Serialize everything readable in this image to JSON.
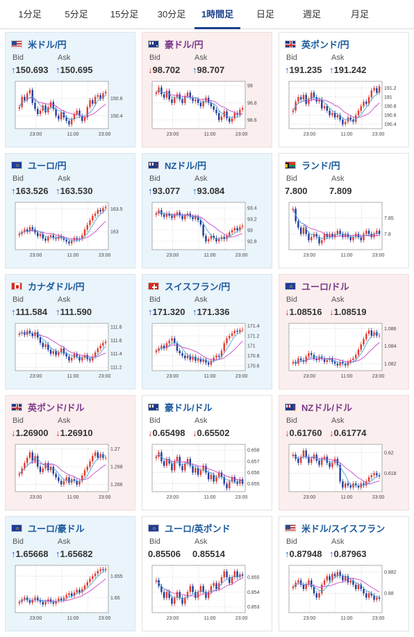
{
  "tabs": [
    {
      "label": "1分足"
    },
    {
      "label": "5分足"
    },
    {
      "label": "15分足"
    },
    {
      "label": "30分足"
    },
    {
      "label": "1時間足",
      "active": true
    },
    {
      "label": "日足"
    },
    {
      "label": "週足"
    },
    {
      "label": "月足"
    }
  ],
  "labels": {
    "bid": "Bid",
    "ask": "Ask"
  },
  "colors": {
    "up_arrow": "#1e62c8",
    "down_arrow": "#d0342a",
    "candle_up": "#e23b2e",
    "candle_down": "#1f3d9c",
    "ma_short": "#4aa3df",
    "ma_long": "#c648c6"
  },
  "pairs": [
    {
      "name": "米ドル/円",
      "flag": "us",
      "trend": "up",
      "bid_arrow": "↑",
      "ask_arrow": "↑",
      "bid": "150.693",
      "ask": "150.695",
      "chart_data": {
        "type": "candlestick",
        "x_ticks": [
          "23:00",
          "11:00",
          "23:00"
        ],
        "y_ticks": [
          "150.6",
          "150.4"
        ],
        "ylim": [
          150.25,
          150.8
        ],
        "closes": [
          150.5,
          150.62,
          150.58,
          150.66,
          150.7,
          150.55,
          150.48,
          150.42,
          150.46,
          150.52,
          150.44,
          150.5,
          150.56,
          150.48,
          150.4,
          150.36,
          150.44,
          150.38,
          150.34,
          150.3,
          150.36,
          150.42,
          150.46,
          150.4,
          150.34,
          150.38,
          150.5,
          150.58,
          150.54,
          150.62,
          150.64,
          150.6,
          150.66,
          150.68
        ]
      }
    },
    {
      "name": "豪ドル/円",
      "flag": "au",
      "trend": "down",
      "bid_arrow": "↓",
      "ask_arrow": "↑",
      "bid": "98.702",
      "ask": "98.707",
      "chart_data": {
        "type": "candlestick",
        "x_ticks": [
          "23:00",
          "11:00",
          "23:00"
        ],
        "y_ticks": [
          "99",
          "98.8",
          "98.6"
        ],
        "ylim": [
          98.5,
          99.05
        ],
        "closes": [
          98.92,
          98.98,
          98.9,
          98.86,
          98.94,
          98.84,
          98.8,
          98.86,
          98.9,
          98.84,
          98.8,
          98.88,
          98.92,
          98.86,
          98.82,
          98.84,
          98.8,
          98.76,
          98.82,
          98.86,
          98.8,
          98.76,
          98.72,
          98.68,
          98.6,
          98.64,
          98.7,
          98.62,
          98.58,
          98.62,
          98.68,
          98.66,
          98.72,
          98.74
        ]
      }
    },
    {
      "name": "英ポンド/円",
      "flag": "uk",
      "trend": "flat",
      "bid_arrow": "↑",
      "ask_arrow": "↑",
      "bid": "191.235",
      "ask": "191.242",
      "chart_data": {
        "type": "candlestick",
        "x_ticks": [
          "23:00",
          "11:00",
          "23:00"
        ],
        "y_ticks": [
          "191.2",
          "191",
          "190.8",
          "190.6",
          "190.4"
        ],
        "ylim": [
          190.3,
          191.35
        ],
        "closes": [
          190.7,
          190.9,
          191.0,
          190.95,
          191.05,
          190.85,
          190.95,
          191.1,
          191.0,
          190.9,
          190.95,
          190.75,
          190.8,
          190.7,
          190.6,
          190.65,
          190.55,
          190.6,
          190.5,
          190.4,
          190.45,
          190.55,
          190.5,
          190.45,
          190.6,
          190.7,
          190.8,
          190.9,
          190.85,
          191.0,
          191.15,
          191.2,
          191.1,
          191.24
        ]
      }
    },
    {
      "name": "ユーロ/円",
      "flag": "eu",
      "trend": "up",
      "bid_arrow": "↑",
      "ask_arrow": "↑",
      "bid": "163.526",
      "ask": "163.530",
      "chart_data": {
        "type": "candlestick",
        "x_ticks": [
          "23:00",
          "11:00",
          "23:00"
        ],
        "y_ticks": [
          "163.5",
          "163"
        ],
        "ylim": [
          162.6,
          163.65
        ],
        "closes": [
          162.95,
          163.0,
          163.05,
          163.0,
          163.1,
          163.05,
          162.98,
          162.9,
          162.95,
          162.85,
          162.8,
          162.88,
          162.92,
          162.86,
          162.84,
          162.9,
          162.86,
          162.82,
          162.78,
          162.74,
          162.8,
          162.86,
          162.82,
          162.84,
          162.92,
          163.05,
          163.15,
          163.25,
          163.35,
          163.4,
          163.48,
          163.45,
          163.52,
          163.55
        ]
      }
    },
    {
      "name": "NZドル/円",
      "flag": "nz",
      "trend": "up",
      "bid_arrow": "↑",
      "ask_arrow": "↑",
      "bid": "93.077",
      "ask": "93.084",
      "chart_data": {
        "type": "candlestick",
        "x_ticks": [
          "23:00",
          "11:00",
          "23:00"
        ],
        "y_ticks": [
          "93.4",
          "93.2",
          "93",
          "92.8"
        ],
        "ylim": [
          92.65,
          93.5
        ],
        "closes": [
          93.3,
          93.36,
          93.28,
          93.24,
          93.3,
          93.26,
          93.22,
          93.28,
          93.32,
          93.26,
          93.2,
          93.26,
          93.3,
          93.24,
          93.2,
          93.24,
          93.18,
          93.1,
          92.9,
          92.8,
          92.84,
          92.9,
          92.86,
          92.8,
          92.84,
          92.88,
          92.84,
          92.9,
          92.96,
          93.0,
          93.04,
          93.0,
          93.06,
          93.08
        ]
      }
    },
    {
      "name": "ランド/円",
      "flag": "za",
      "trend": "flat",
      "bid_arrow": "",
      "ask_arrow": "",
      "bid": "7.800",
      "ask": "7.809",
      "chart_data": {
        "type": "candlestick",
        "x_ticks": [
          "23:00",
          "11:00",
          "23:00"
        ],
        "y_ticks": [
          "7.85",
          "7.8"
        ],
        "ylim": [
          7.75,
          7.9
        ],
        "closes": [
          7.88,
          7.84,
          7.82,
          7.8,
          7.82,
          7.8,
          7.78,
          7.79,
          7.8,
          7.79,
          7.77,
          7.78,
          7.8,
          7.79,
          7.8,
          7.79,
          7.8,
          7.81,
          7.8,
          7.79,
          7.8,
          7.79,
          7.78,
          7.79,
          7.8,
          7.79,
          7.78,
          7.8,
          7.81,
          7.8,
          7.79,
          7.8,
          7.81,
          7.8
        ]
      }
    },
    {
      "name": "カナダドル/円",
      "flag": "ca",
      "trend": "up",
      "bid_arrow": "↑",
      "ask_arrow": "↑",
      "bid": "111.584",
      "ask": "111.590",
      "chart_data": {
        "type": "candlestick",
        "x_ticks": [
          "23:00",
          "11:00",
          "23:00"
        ],
        "y_ticks": [
          "111.8",
          "111.6",
          "111.4",
          "111.2"
        ],
        "ylim": [
          111.15,
          111.85
        ],
        "closes": [
          111.7,
          111.72,
          111.68,
          111.74,
          111.7,
          111.66,
          111.72,
          111.64,
          111.56,
          111.5,
          111.54,
          111.46,
          111.4,
          111.44,
          111.38,
          111.42,
          111.48,
          111.4,
          111.36,
          111.3,
          111.34,
          111.4,
          111.36,
          111.3,
          111.34,
          111.38,
          111.32,
          111.3,
          111.36,
          111.42,
          111.48,
          111.52,
          111.56,
          111.58
        ]
      }
    },
    {
      "name": "スイスフラン/円",
      "flag": "ch",
      "trend": "up",
      "bid_arrow": "↑",
      "ask_arrow": "↑",
      "bid": "171.320",
      "ask": "171.336",
      "chart_data": {
        "type": "candlestick",
        "x_ticks": [
          "23:00",
          "11:00",
          "23:00"
        ],
        "y_ticks": [
          "171.4",
          "171.2",
          "171",
          "170.8",
          "170.6"
        ],
        "ylim": [
          170.5,
          171.45
        ],
        "closes": [
          170.9,
          170.95,
          171.0,
          170.95,
          171.05,
          171.1,
          171.15,
          171.05,
          170.9,
          170.85,
          170.8,
          170.75,
          170.8,
          170.72,
          170.78,
          170.7,
          170.74,
          170.68,
          170.72,
          170.66,
          170.62,
          170.7,
          170.76,
          170.8,
          170.78,
          170.9,
          171.05,
          171.15,
          171.2,
          171.25,
          171.3,
          171.28,
          171.32,
          171.33
        ]
      }
    },
    {
      "name": "ユーロ/ドル",
      "flag": "euus",
      "trend": "down",
      "bid_arrow": "↓",
      "ask_arrow": "↓",
      "bid": "1.08516",
      "ask": "1.08519",
      "chart_data": {
        "type": "candlestick",
        "x_ticks": [
          "23:00",
          "11:00",
          "23:00"
        ],
        "y_ticks": [
          "1.086",
          "1.084",
          "1.082"
        ],
        "ylim": [
          1.0812,
          1.0866
        ],
        "closes": [
          1.0822,
          1.082,
          1.0826,
          1.0824,
          1.0822,
          1.0828,
          1.0832,
          1.083,
          1.0826,
          1.0824,
          1.0828,
          1.0826,
          1.0822,
          1.0824,
          1.0826,
          1.0822,
          1.082,
          1.0818,
          1.0822,
          1.082,
          1.0818,
          1.0822,
          1.0824,
          1.0826,
          1.083,
          1.0836,
          1.0842,
          1.0848,
          1.0854,
          1.0858,
          1.0852,
          1.0856,
          1.0852,
          1.0852
        ]
      }
    },
    {
      "name": "英ポンド/ドル",
      "flag": "ukus",
      "trend": "down",
      "bid_arrow": "↓",
      "ask_arrow": "↓",
      "bid": "1.26900",
      "ask": "1.26910",
      "chart_data": {
        "type": "candlestick",
        "x_ticks": [
          "23:00",
          "11:00",
          "23:00"
        ],
        "y_ticks": [
          "1.27",
          "1.268",
          "1.266"
        ],
        "ylim": [
          1.2652,
          1.2705
        ],
        "closes": [
          1.2672,
          1.2678,
          1.2684,
          1.269,
          1.2696,
          1.2686,
          1.2692,
          1.268,
          1.2674,
          1.2678,
          1.2684,
          1.2676,
          1.268,
          1.2672,
          1.2668,
          1.2664,
          1.266,
          1.2664,
          1.2668,
          1.2662,
          1.2666,
          1.2664,
          1.266,
          1.2664,
          1.267,
          1.2676,
          1.268,
          1.2686,
          1.2692,
          1.2696,
          1.269,
          1.2694,
          1.269,
          1.269
        ]
      }
    },
    {
      "name": "豪ドル/ドル",
      "flag": "auus",
      "trend": "flat",
      "bid_arrow": "↓",
      "ask_arrow": "↓",
      "bid": "0.65498",
      "ask": "0.65502",
      "chart_data": {
        "type": "candlestick",
        "x_ticks": [
          "23:00",
          "11:00",
          "23:00"
        ],
        "y_ticks": [
          "0.658",
          "0.657",
          "0.656",
          "0.655"
        ],
        "ylim": [
          0.6543,
          0.6585
        ],
        "closes": [
          0.6574,
          0.6578,
          0.657,
          0.6566,
          0.6572,
          0.6568,
          0.6562,
          0.657,
          0.6574,
          0.6566,
          0.6562,
          0.6568,
          0.6572,
          0.6566,
          0.656,
          0.6564,
          0.6558,
          0.6562,
          0.6566,
          0.656,
          0.6554,
          0.6558,
          0.6552,
          0.6556,
          0.656,
          0.6556,
          0.655,
          0.6546,
          0.6552,
          0.6556,
          0.6552,
          0.655,
          0.6554,
          0.655
        ]
      }
    },
    {
      "name": "NZドル/ドル",
      "flag": "nzus",
      "trend": "down",
      "bid_arrow": "↓",
      "ask_arrow": "↓",
      "bid": "0.61760",
      "ask": "0.61774",
      "chart_data": {
        "type": "candlestick",
        "x_ticks": [
          "23:00",
          "11:00",
          "23:00"
        ],
        "y_ticks": [
          "0.62",
          "0.618"
        ],
        "ylim": [
          0.6162,
          0.6208
        ],
        "closes": [
          0.6198,
          0.6194,
          0.619,
          0.6196,
          0.6202,
          0.6196,
          0.619,
          0.6194,
          0.6198,
          0.6192,
          0.6188,
          0.6194,
          0.6196,
          0.619,
          0.6186,
          0.619,
          0.6194,
          0.6188,
          0.6172,
          0.6166,
          0.617,
          0.6168,
          0.6166,
          0.617,
          0.6168,
          0.6166,
          0.617,
          0.6168,
          0.6172,
          0.6176,
          0.6178,
          0.618,
          0.6178,
          0.6177
        ]
      }
    },
    {
      "name": "ユーロ/豪ドル",
      "flag": "euau",
      "trend": "up",
      "bid_arrow": "↑",
      "ask_arrow": "↑",
      "bid": "1.65668",
      "ask": "1.65682",
      "chart_data": {
        "type": "candlestick",
        "x_ticks": [
          "23:00",
          "11:00",
          "23:00"
        ],
        "y_ticks": [
          "1.655",
          "1.65"
        ],
        "ylim": [
          1.6465,
          1.6575
        ],
        "closes": [
          1.649,
          1.6496,
          1.65,
          1.6494,
          1.6488,
          1.6494,
          1.65,
          1.6494,
          1.649,
          1.6484,
          1.649,
          1.6496,
          1.649,
          1.6486,
          1.6492,
          1.6498,
          1.6494,
          1.65,
          1.6506,
          1.651,
          1.6504,
          1.6512,
          1.6518,
          1.6512,
          1.652,
          1.6528,
          1.6536,
          1.6544,
          1.655,
          1.6556,
          1.6562,
          1.6566,
          1.6564,
          1.6567
        ]
      }
    },
    {
      "name": "ユーロ/英ポンド",
      "flag": "euuk",
      "trend": "flat",
      "bid_arrow": "",
      "ask_arrow": "",
      "bid": "0.85506",
      "ask": "0.85514",
      "chart_data": {
        "type": "candlestick",
        "x_ticks": [
          "23:00",
          "11:00",
          "23:00"
        ],
        "y_ticks": [
          "0.855",
          "0.854",
          "0.853"
        ],
        "ylim": [
          0.8526,
          0.8558
        ],
        "closes": [
          0.8548,
          0.8544,
          0.854,
          0.8536,
          0.854,
          0.8536,
          0.8532,
          0.8536,
          0.854,
          0.8536,
          0.8532,
          0.8536,
          0.854,
          0.8544,
          0.854,
          0.8536,
          0.854,
          0.8544,
          0.854,
          0.8536,
          0.854,
          0.8544,
          0.8546,
          0.8542,
          0.8546,
          0.855,
          0.8554,
          0.855,
          0.8546,
          0.855,
          0.8554,
          0.855,
          0.8552,
          0.8551
        ]
      }
    },
    {
      "name": "米ドル/スイスフラン",
      "flag": "usch",
      "trend": "flat",
      "bid_arrow": "↑",
      "ask_arrow": "↑",
      "bid": "0.87948",
      "ask": "0.87963",
      "chart_data": {
        "type": "candlestick",
        "x_ticks": [
          "23:00",
          "11:00",
          "23:00"
        ],
        "y_ticks": [
          "0.882",
          "0.88"
        ],
        "ylim": [
          0.8782,
          0.8826
        ],
        "closes": [
          0.8806,
          0.881,
          0.8812,
          0.8808,
          0.8804,
          0.8808,
          0.8812,
          0.8806,
          0.88,
          0.8796,
          0.88,
          0.8808,
          0.8812,
          0.8816,
          0.8812,
          0.8818,
          0.8816,
          0.882,
          0.8816,
          0.8812,
          0.8816,
          0.881,
          0.8812,
          0.8808,
          0.8804,
          0.8808,
          0.8804,
          0.88,
          0.8796,
          0.88,
          0.8798,
          0.8794,
          0.8796,
          0.8795
        ]
      }
    }
  ]
}
